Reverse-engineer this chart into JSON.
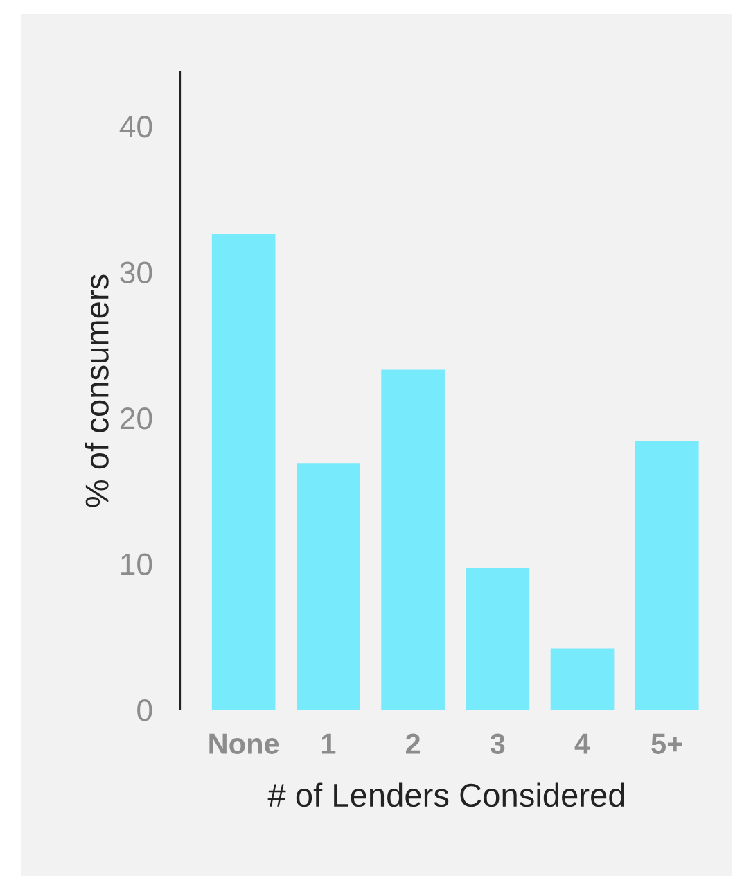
{
  "chart_data": {
    "type": "bar",
    "xlabel": "# of Lenders Considered",
    "ylabel": "% of consumers",
    "categories": [
      "None",
      "1",
      "2",
      "3",
      "4",
      "5+"
    ],
    "values": [
      32.6,
      16.9,
      23.3,
      9.7,
      4.2,
      18.4
    ],
    "color": "#77ebfc",
    "ylim": [
      0,
      43.7
    ],
    "yticks": [
      0,
      10,
      20,
      30,
      40
    ],
    "grid": false,
    "legend": false
  }
}
